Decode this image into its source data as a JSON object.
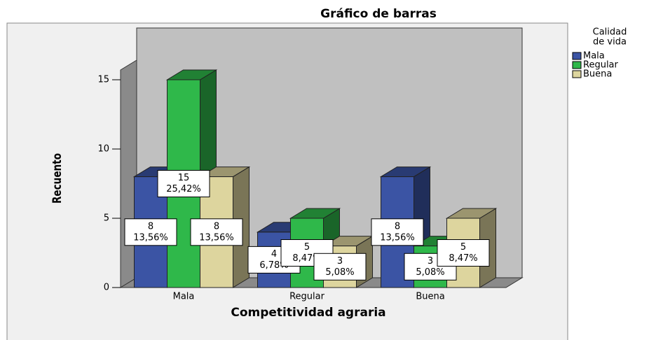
{
  "chart_data": {
    "type": "bar3d",
    "title": "Gráfico de barras",
    "x_label": "Competitividad agraria",
    "y_label": "Recuento",
    "legend_title": [
      "Calidad",
      "de vida"
    ],
    "categories": [
      "Mala",
      "Regular",
      "Buena"
    ],
    "series": [
      {
        "name": "Mala",
        "color": "#3b54a4",
        "values": [
          8,
          4,
          8
        ],
        "percent_labels": [
          "13,56%",
          "6,78%",
          "13,56%"
        ]
      },
      {
        "name": "Regular",
        "color": "#2fb84a",
        "values": [
          15,
          5,
          3
        ],
        "percent_labels": [
          "25,42%",
          "8,47%",
          "5,08%"
        ]
      },
      {
        "name": "Buena",
        "color": "#ddd59e",
        "values": [
          8,
          3,
          5
        ],
        "percent_labels": [
          "13,56%",
          "5,08%",
          "8,47%"
        ]
      }
    ],
    "ylim": [
      0,
      16
    ],
    "yticks": [
      0,
      5,
      10,
      15
    ],
    "grid": false,
    "legend": "right"
  }
}
